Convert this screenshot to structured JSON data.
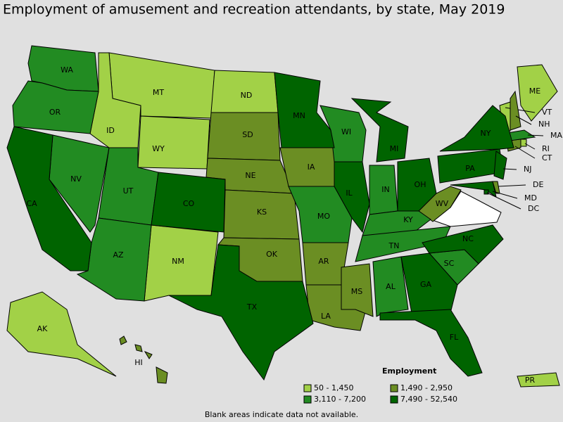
{
  "title": "Employment of amusement and recreation attendants, by state, May 2019",
  "legend": {
    "title": "Employment",
    "items": [
      {
        "label": "50 - 1,450",
        "color": "#a2d147",
        "states": [
          "MT",
          "ID",
          "WY",
          "ND",
          "NM",
          "AK",
          "ME",
          "VT",
          "RI",
          "PR"
        ]
      },
      {
        "label": "1,490 - 2,950",
        "color": "#6b8e23",
        "states": [
          "SD",
          "NE",
          "KS",
          "IA",
          "OK",
          "AR",
          "LA",
          "MS",
          "WV",
          "HI",
          "NH",
          "CT",
          "DE"
        ]
      },
      {
        "label": "3,110 - 7,200",
        "color": "#228b22",
        "states": [
          "WA",
          "OR",
          "NV",
          "UT",
          "AZ",
          "WI",
          "IN",
          "MO",
          "KY",
          "TN",
          "AL",
          "SC",
          "MA"
        ]
      },
      {
        "label": "7,490 - 52,540",
        "color": "#006400",
        "states": [
          "CA",
          "CO",
          "TX",
          "MN",
          "IL",
          "MI",
          "OH",
          "PA",
          "NY",
          "NJ",
          "GA",
          "FL",
          "NC",
          "MD",
          "DC"
        ]
      }
    ]
  },
  "note": "Blank areas indicate data not available."
}
